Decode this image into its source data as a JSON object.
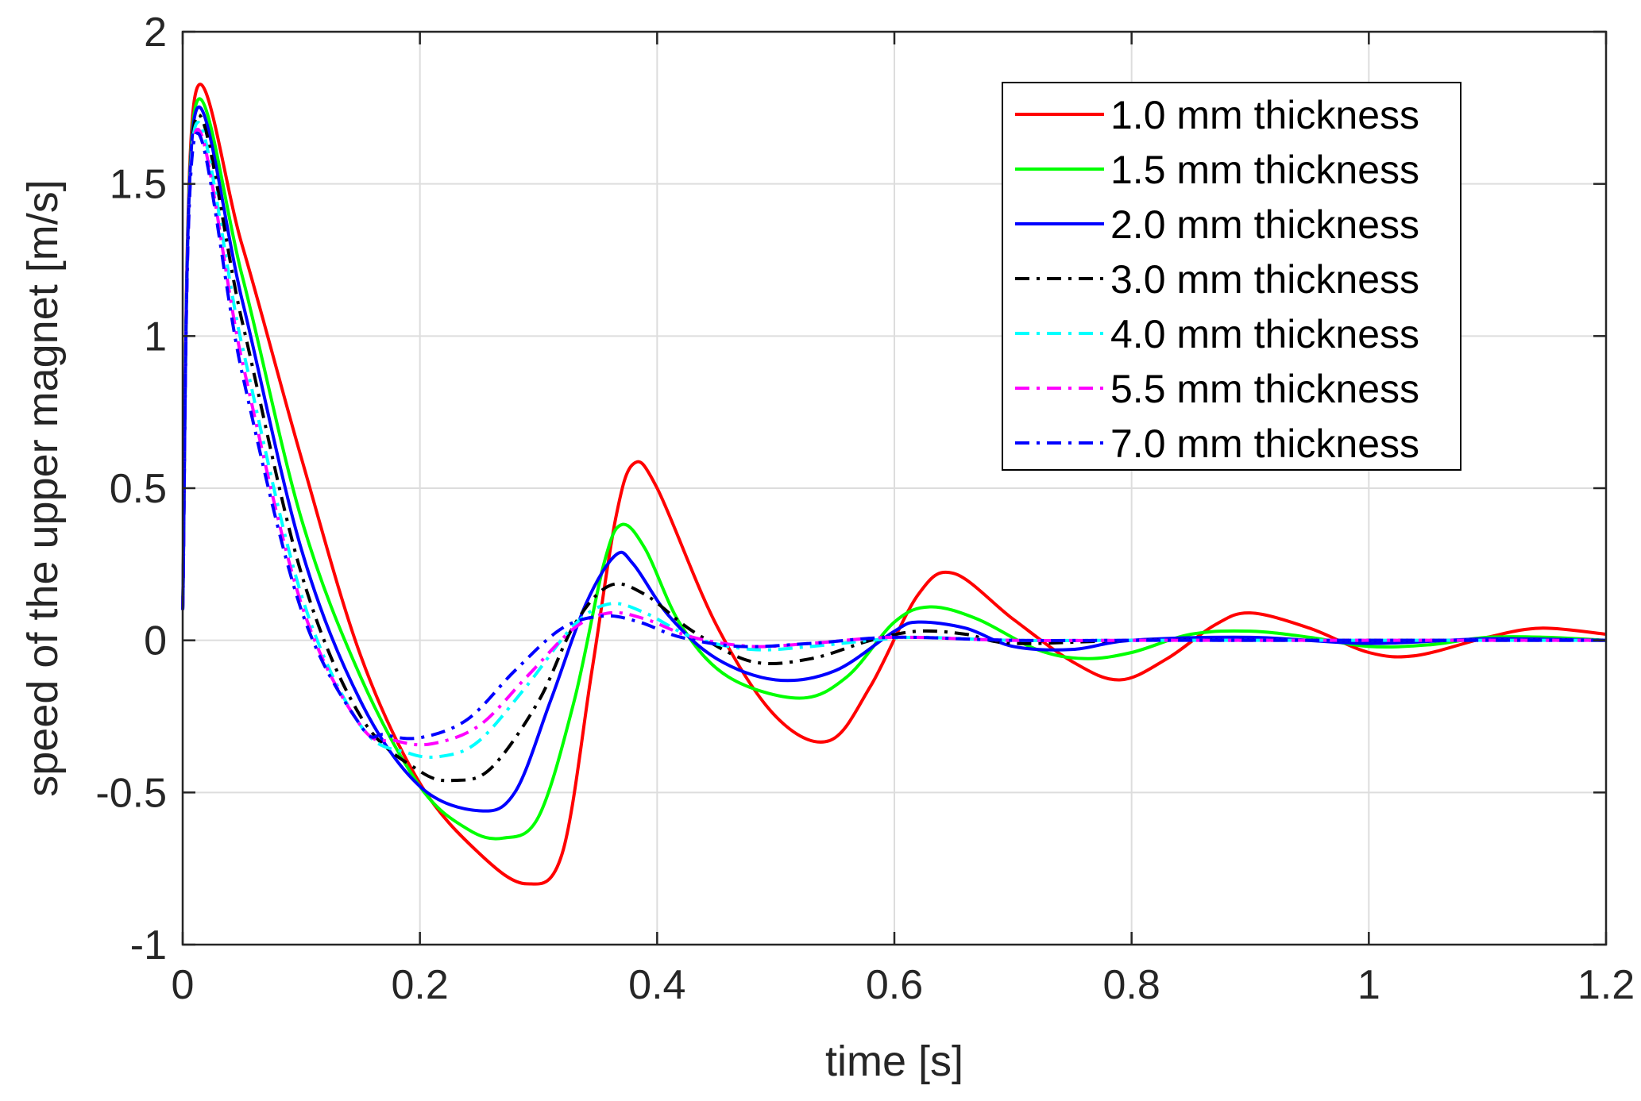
{
  "chart_data": {
    "type": "line",
    "title": "",
    "xlabel": "time [s]",
    "ylabel": "speed of the upper magnet [m/s]",
    "xlim": [
      0,
      1.2
    ],
    "ylim": [
      -1,
      2
    ],
    "xticks": [
      0,
      0.2,
      0.4,
      0.6,
      0.8,
      1,
      1.2
    ],
    "xtick_labels": [
      "0",
      "0.2",
      "0.4",
      "0.6",
      "0.8",
      "1",
      "1.2"
    ],
    "yticks": [
      -1,
      -0.5,
      0,
      0.5,
      1,
      1.5,
      2
    ],
    "ytick_labels": [
      "-1",
      "-0.5",
      "0",
      "0.5",
      "1",
      "1.5",
      "2"
    ],
    "grid": true,
    "legend_position": "top-right",
    "series": [
      {
        "name": "1.0 mm thickness",
        "color": "#ff0000",
        "style": "solid",
        "x": [
          0,
          0.01,
          0.05,
          0.1,
          0.15,
          0.2,
          0.25,
          0.29,
          0.32,
          0.345,
          0.365,
          0.38,
          0.4,
          0.45,
          0.5,
          0.545,
          0.58,
          0.62,
          0.65,
          0.7,
          0.75,
          0.79,
          0.83,
          0.87,
          0.9,
          0.95,
          1.0,
          1.04,
          1.1,
          1.145,
          1.2
        ],
        "y": [
          0.1,
          1.78,
          1.3,
          0.6,
          -0.05,
          -0.47,
          -0.7,
          -0.8,
          -0.7,
          -0.1,
          0.4,
          0.58,
          0.5,
          0.05,
          -0.25,
          -0.33,
          -0.15,
          0.15,
          0.22,
          0.07,
          -0.07,
          -0.13,
          -0.06,
          0.05,
          0.09,
          0.04,
          -0.04,
          -0.05,
          0.01,
          0.04,
          0.02
        ]
      },
      {
        "name": "1.5 mm thickness",
        "color": "#00ff00",
        "style": "solid",
        "x": [
          0,
          0.01,
          0.05,
          0.1,
          0.15,
          0.2,
          0.24,
          0.27,
          0.3,
          0.33,
          0.355,
          0.37,
          0.39,
          0.42,
          0.46,
          0.52,
          0.56,
          0.6,
          0.63,
          0.67,
          0.72,
          0.76,
          0.8,
          0.85,
          0.9,
          0.95,
          1.0,
          1.05,
          1.1,
          1.15,
          1.2
        ],
        "y": [
          0.1,
          1.74,
          1.2,
          0.4,
          -0.12,
          -0.48,
          -0.62,
          -0.65,
          -0.58,
          -0.2,
          0.25,
          0.38,
          0.3,
          0.05,
          -0.12,
          -0.19,
          -0.12,
          0.06,
          0.11,
          0.07,
          -0.03,
          -0.06,
          -0.04,
          0.02,
          0.03,
          0.01,
          -0.02,
          -0.015,
          0.01,
          0.01,
          0.0
        ]
      },
      {
        "name": "2.0 mm thickness",
        "color": "#0000ff",
        "style": "solid",
        "x": [
          0,
          0.01,
          0.05,
          0.1,
          0.15,
          0.2,
          0.25,
          0.28,
          0.31,
          0.34,
          0.365,
          0.38,
          0.41,
          0.45,
          0.5,
          0.55,
          0.6,
          0.62,
          0.66,
          0.7,
          0.75,
          0.8,
          0.9,
          1.0,
          1.1,
          1.2
        ],
        "y": [
          0.1,
          1.72,
          1.12,
          0.3,
          -0.2,
          -0.48,
          -0.56,
          -0.5,
          -0.2,
          0.12,
          0.28,
          0.25,
          0.08,
          -0.06,
          -0.13,
          -0.1,
          0.03,
          0.06,
          0.04,
          -0.02,
          -0.03,
          0.0,
          0.01,
          -0.01,
          0.005,
          0.0
        ]
      },
      {
        "name": "3.0 mm thickness",
        "color": "#000000",
        "style": "dashdot",
        "x": [
          0,
          0.01,
          0.05,
          0.1,
          0.15,
          0.2,
          0.23,
          0.26,
          0.3,
          0.33,
          0.36,
          0.39,
          0.43,
          0.48,
          0.53,
          0.58,
          0.62,
          0.66,
          0.7,
          0.8,
          0.9,
          1.0,
          1.1,
          1.2
        ],
        "y": [
          0.1,
          1.7,
          1.05,
          0.22,
          -0.25,
          -0.43,
          -0.46,
          -0.42,
          -0.2,
          0.05,
          0.18,
          0.15,
          0.03,
          -0.07,
          -0.06,
          0.0,
          0.03,
          0.02,
          -0.01,
          0.0,
          0.0,
          0.0,
          0.0,
          0.0
        ]
      },
      {
        "name": "4.0 mm thickness",
        "color": "#00ffff",
        "style": "dashdot",
        "x": [
          0,
          0.01,
          0.05,
          0.1,
          0.15,
          0.19,
          0.22,
          0.25,
          0.29,
          0.33,
          0.36,
          0.39,
          0.43,
          0.48,
          0.53,
          0.58,
          0.62,
          0.7,
          0.8,
          0.9,
          1.0,
          1.1,
          1.2
        ],
        "y": [
          0.1,
          1.68,
          0.97,
          0.15,
          -0.28,
          -0.37,
          -0.38,
          -0.33,
          -0.15,
          0.05,
          0.12,
          0.09,
          0.01,
          -0.03,
          -0.02,
          0.0,
          0.01,
          0.0,
          0.0,
          0.0,
          0.0,
          0.0,
          0.0
        ]
      },
      {
        "name": "5.5 mm thickness",
        "color": "#ff00ff",
        "style": "dashdot",
        "x": [
          0,
          0.01,
          0.05,
          0.1,
          0.15,
          0.18,
          0.21,
          0.25,
          0.29,
          0.33,
          0.36,
          0.39,
          0.43,
          0.48,
          0.53,
          0.6,
          0.7,
          0.8,
          0.9,
          1.0,
          1.1,
          1.2
        ],
        "y": [
          0.1,
          1.66,
          0.92,
          0.12,
          -0.28,
          -0.33,
          -0.34,
          -0.28,
          -0.12,
          0.04,
          0.09,
          0.07,
          0.01,
          -0.02,
          -0.01,
          0.01,
          0.0,
          0.0,
          0.0,
          0.0,
          0.0,
          0.0
        ]
      },
      {
        "name": "7.0 mm thickness",
        "color": "#0000ff",
        "style": "dashdot",
        "x": [
          0,
          0.01,
          0.05,
          0.1,
          0.15,
          0.17,
          0.2,
          0.24,
          0.28,
          0.32,
          0.355,
          0.385,
          0.42,
          0.47,
          0.53,
          0.6,
          0.7,
          0.8,
          0.9,
          1.0,
          1.1,
          1.2
        ],
        "y": [
          0.1,
          1.65,
          0.88,
          0.1,
          -0.28,
          -0.31,
          -0.32,
          -0.26,
          -0.1,
          0.04,
          0.08,
          0.06,
          0.01,
          -0.02,
          -0.01,
          0.01,
          0.0,
          0.0,
          0.0,
          0.0,
          0.0,
          0.0
        ]
      }
    ]
  }
}
